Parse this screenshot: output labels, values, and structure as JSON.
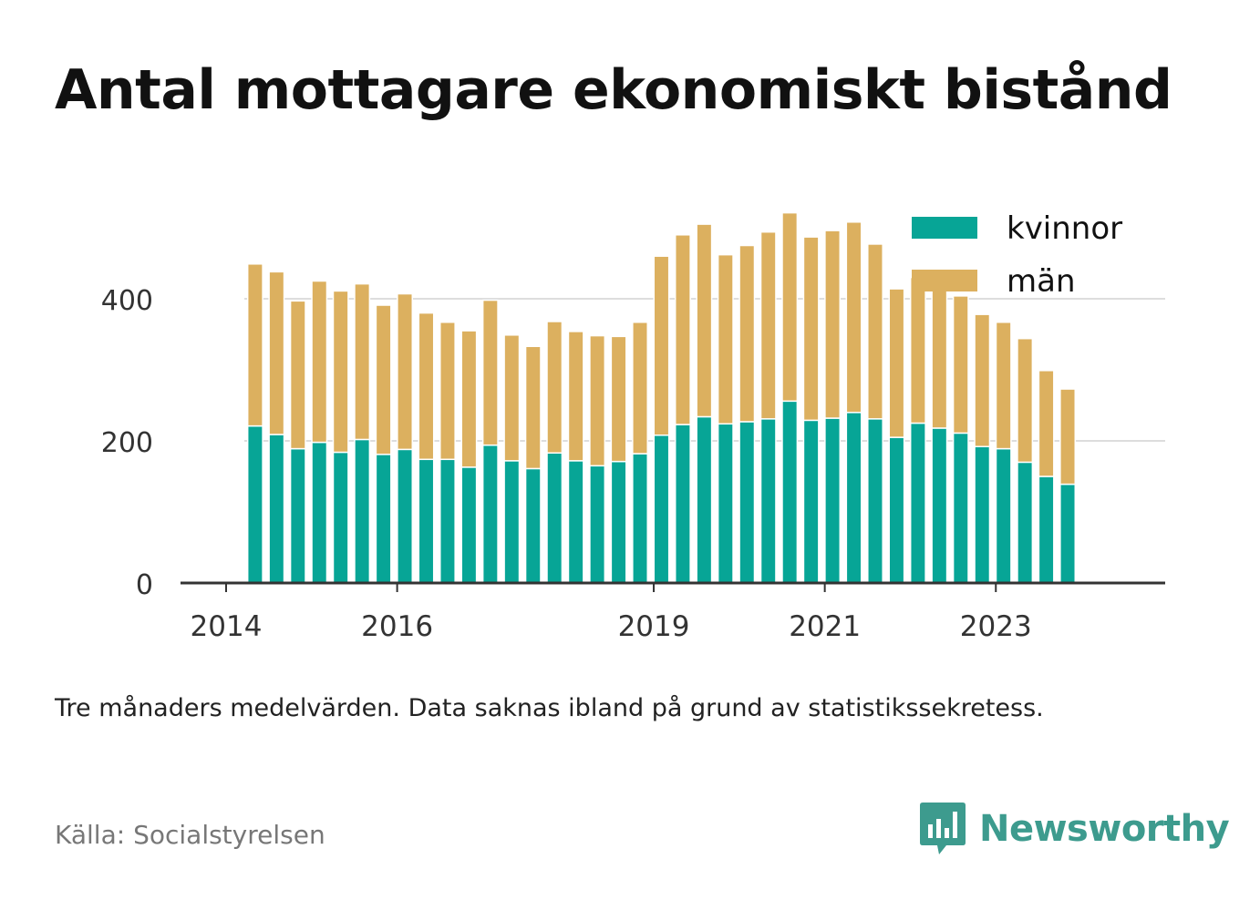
{
  "title": "Antal mottagare ekonomiskt bistånd",
  "note": "Tre månaders medelvärden. Data saknas ibland på grund av statistikssekretess.",
  "source": "Källa: Socialstyrelsen",
  "brand": {
    "name": "Newsworthy",
    "icon": "newsworthy-logo-icon",
    "color": "#3d9b8e"
  },
  "colors": {
    "kvinnor": "#07a596",
    "man": "#dcb05f",
    "grid": "#dddddd",
    "axis": "#333333"
  },
  "chart_data": {
    "type": "bar",
    "stacked": true,
    "title": "Antal mottagare ekonomiskt bistånd",
    "xlabel": "",
    "ylabel": "",
    "ylim": [
      0,
      500
    ],
    "xlim": [
      2014,
      2024.98
    ],
    "y_ticks": [
      0,
      200,
      400
    ],
    "x_ticks": [
      {
        "value": 2014.0,
        "label": "2014"
      },
      {
        "value": 2016.0,
        "label": "2016"
      },
      {
        "value": 2019.0,
        "label": "2019"
      },
      {
        "value": 2021.0,
        "label": "2021"
      },
      {
        "value": 2023.0,
        "label": "2023"
      }
    ],
    "grid": true,
    "legend": "top-right",
    "bar_period_years": 0.25,
    "x_start": 2014.34,
    "series": [
      {
        "name": "kvinnor",
        "color": "#07a596",
        "values": [
          221,
          209,
          189,
          198,
          184,
          202,
          181,
          188,
          174,
          174,
          163,
          194,
          172,
          161,
          183,
          172,
          165,
          171,
          182,
          208,
          223,
          234,
          224,
          227,
          231,
          256,
          229,
          232,
          240,
          231,
          205,
          225,
          218,
          211,
          192,
          189,
          170,
          150,
          139
        ]
      },
      {
        "name": "män",
        "color": "#dcb05f",
        "values": [
          228,
          229,
          208,
          227,
          227,
          219,
          210,
          219,
          206,
          193,
          192,
          204,
          177,
          172,
          185,
          182,
          183,
          176,
          185,
          252,
          267,
          271,
          238,
          248,
          263,
          265,
          258,
          264,
          268,
          246,
          209,
          205,
          212,
          193,
          186,
          178,
          174,
          149,
          134
        ]
      }
    ]
  }
}
